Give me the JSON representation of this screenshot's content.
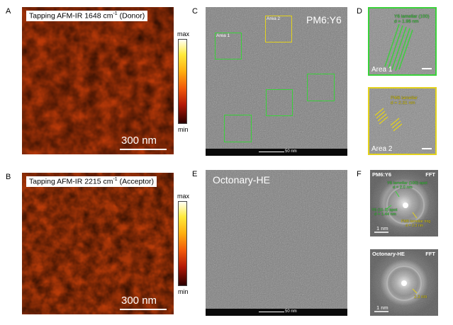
{
  "panels": {
    "A": {
      "letter": "A",
      "title": "Tapping AFM-IR 1648 cm",
      "sup": "-1",
      "title_suffix": " (Donor)",
      "scale": "300 nm",
      "cbar_max": "max",
      "cbar_min": "min"
    },
    "B": {
      "letter": "B",
      "title": "Tapping AFM-IR 2215 cm",
      "sup": "-1",
      "title_suffix": " (Acceptor)",
      "scale": "300 nm",
      "cbar_max": "max",
      "cbar_min": "min"
    },
    "C": {
      "letter": "C",
      "label": "PM6:Y6",
      "area1": "Area 1",
      "area2": "Area 2",
      "scale": "50 nm"
    },
    "D": {
      "letter": "D",
      "area1": "Area 1",
      "area2": "Area 2",
      "ann1_line1": "Y6 lamellar (100)",
      "ann1_line2": "d = 1.96 nm",
      "ann2_line1": "PM6 lamellar",
      "ann2_line2": "d = 2.31 nm"
    },
    "E": {
      "letter": "E",
      "label": "Octonary-HE",
      "scale": "50 nm"
    },
    "F": {
      "letter": "F",
      "top_title": "PM6:Y6",
      "top_fft": "FFT",
      "top_scale": "1 nm",
      "ann_y6_100_l1": "Y6 lamellar (100) spot",
      "ann_y6_100_l2": "d = 2.0 nm",
      "ann_y6_11_l1": "Y6 (11-1) spot",
      "ann_y6_11_l2": "d = 1.44 nm",
      "ann_pm6_l1": "PM6 lamellar ring",
      "ann_pm6_l2": "d = 2.3 nm",
      "bot_title": "Octonary-HE",
      "bot_fft": "FFT",
      "bot_scale": "1 nm",
      "bot_ring": "2.3 nm"
    }
  },
  "colors": {
    "green_box": "#3ad13a",
    "yellow_box": "#e3d21c",
    "afm_hot": "#e85a10"
  }
}
